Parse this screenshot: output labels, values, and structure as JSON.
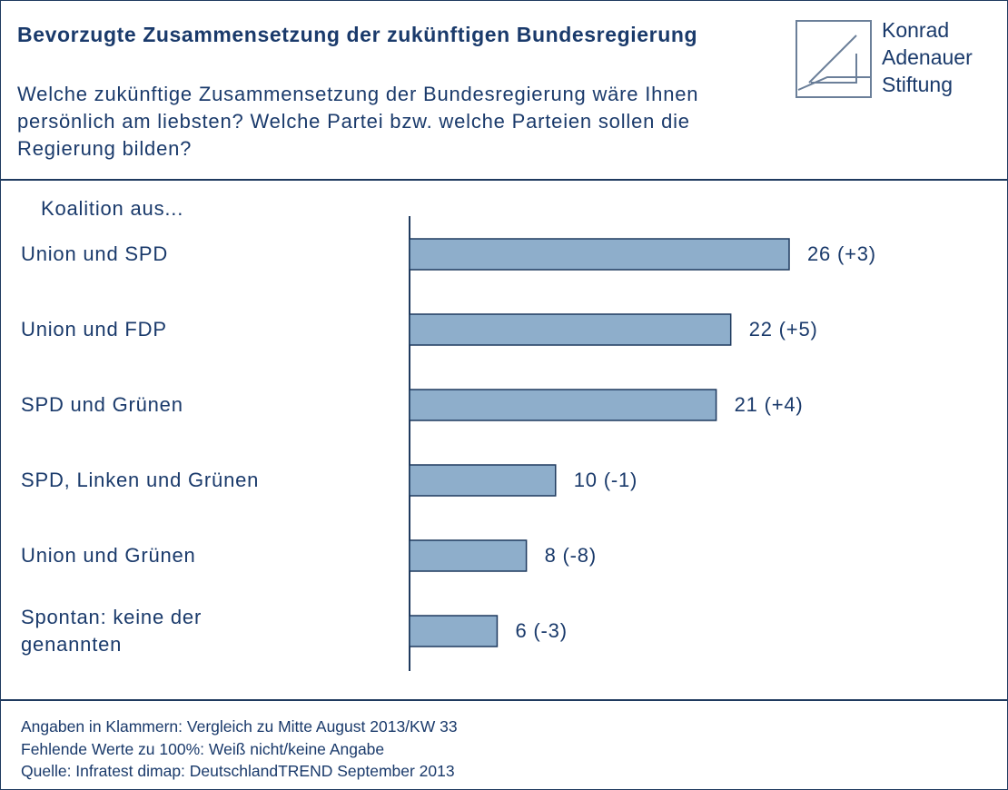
{
  "chart_data": {
    "type": "bar",
    "orientation": "horizontal",
    "title": "Bevorzugte Zusammensetzung der zukünftigen Bundesregierung",
    "subtitle": "Welche zukünftige Zusammensetzung der Bundesregierung wäre Ihnen persönlich am liebsten? Welche Partei bzw. welche Parteien sollen die Regierung bilden?",
    "axis_label": "Koalition aus...",
    "categories": [
      "Union und SPD",
      "Union und FDP",
      "SPD und Grünen",
      "SPD, Linken und Grünen",
      "Union und Grünen",
      "Spontan: keine der genannten"
    ],
    "values": [
      26,
      22,
      21,
      10,
      8,
      6
    ],
    "value_labels": [
      "26 (+3)",
      "22 (+5)",
      "21 (+4)",
      "10 (-1)",
      "8 (-8)",
      "6 (-3)"
    ],
    "color": "#8eaecb",
    "notes": [
      "Angaben in Klammern: Vergleich zu Mitte August 2013/KW 33",
      "Fehlende Werte zu 100%: Weiß nicht/keine Angabe",
      "Quelle: Infratest dimap: DeutschlandTREND September 2013"
    ]
  },
  "logo": [
    "Konrad",
    "Adenauer",
    "Stiftung"
  ]
}
